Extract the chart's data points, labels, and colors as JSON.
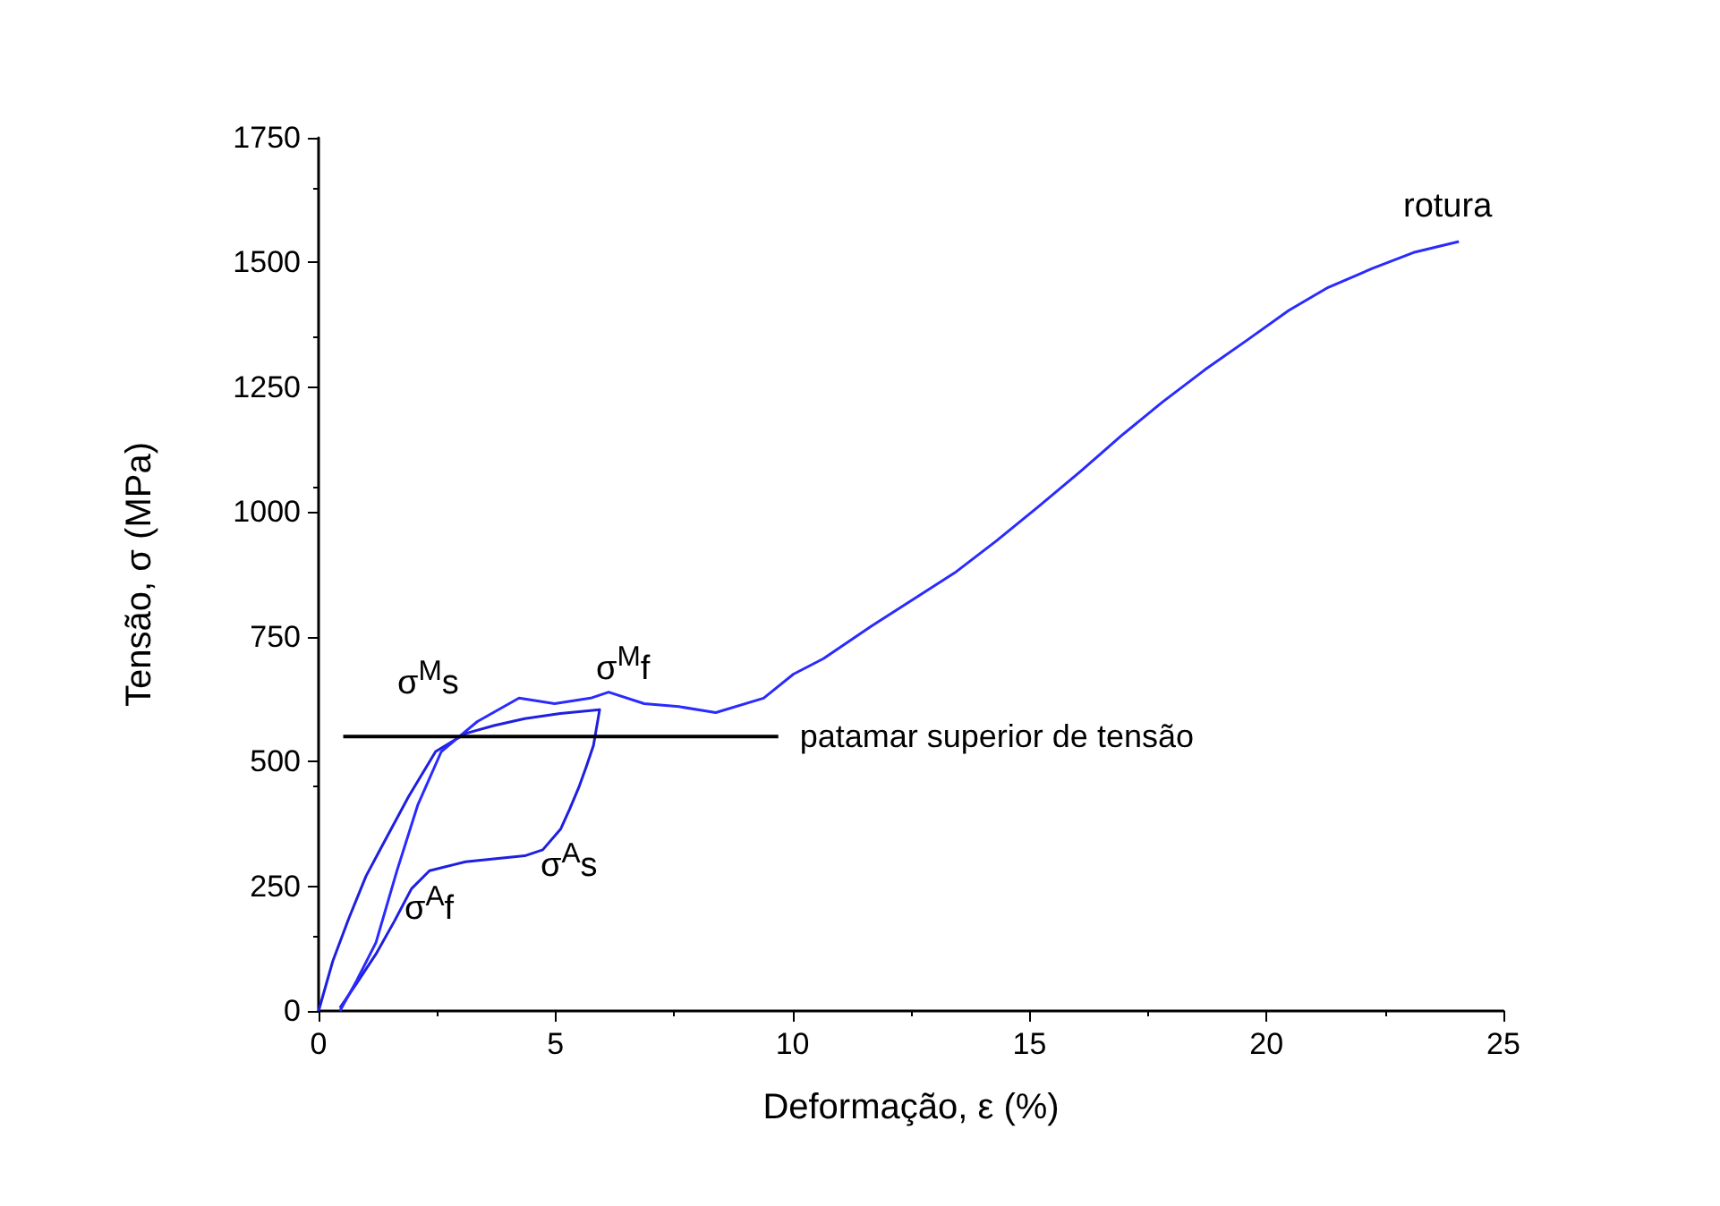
{
  "chart_data": {
    "type": "line",
    "xlabel": "Deformação, ε (%)",
    "ylabel": "Tensão, σ (MPa)",
    "xlim": [
      0,
      25
    ],
    "xticks": [
      0,
      5,
      10,
      15,
      20,
      25
    ],
    "ylim": [
      0,
      1750
    ],
    "yticks": [
      0,
      250,
      500,
      750,
      1000,
      1250,
      1500,
      1750
    ],
    "grid": false,
    "legend": false,
    "marker": "none",
    "series": [
      {
        "color": "#1f1fe0",
        "x": [
          0,
          0.3,
          0.64,
          1.0,
          1.33,
          1.9,
          2.47,
          3.1,
          3.7,
          4.35,
          5.1,
          5.93,
          5.8,
          5.65,
          5.49,
          5.3,
          5.11,
          4.73,
          4.35,
          3.7,
          3.1,
          2.34,
          1.96,
          1.6,
          1.21,
          0.8,
          0.45
        ],
        "values": [
          0,
          100,
          186,
          270,
          329,
          430,
          520,
          556,
          572,
          586,
          596,
          604,
          532,
          490,
          448,
          405,
          365,
          323,
          311,
          305,
          299,
          281,
          245,
          180,
          114,
          55,
          6
        ]
      },
      {
        "color": "#2a2aff",
        "x": [
          0.45,
          0.8,
          1.21,
          1.65,
          2.09,
          2.59,
          3.35,
          4.23,
          4.98,
          5.74,
          6.12,
          6.87,
          7.6,
          8.38,
          9.39,
          10.02,
          10.65,
          11.66,
          12.5,
          13.42,
          14.3,
          15.18,
          16.06,
          16.94,
          17.8,
          18.7,
          19.6,
          20.47,
          21.3,
          22.23,
          23.1,
          24.06
        ],
        "values": [
          0,
          60,
          137,
          280,
          412,
          520,
          580,
          627,
          616,
          627,
          639,
          616,
          610,
          598,
          627,
          675,
          706,
          771,
          822,
          878,
          942,
          1010,
          1080,
          1153,
          1220,
          1285,
          1345,
          1404,
          1450,
          1488,
          1520,
          1542
        ]
      },
      {
        "name": "patamar superior de tensão",
        "color": "#000000",
        "x": [
          0.52,
          9.7
        ],
        "values": [
          550,
          550
        ]
      }
    ],
    "annotations": [
      "σ$^{M}$s",
      "σ$^{M}$f",
      "σ$^{A}$s",
      "σ$^{A}$f",
      "rotura"
    ]
  }
}
